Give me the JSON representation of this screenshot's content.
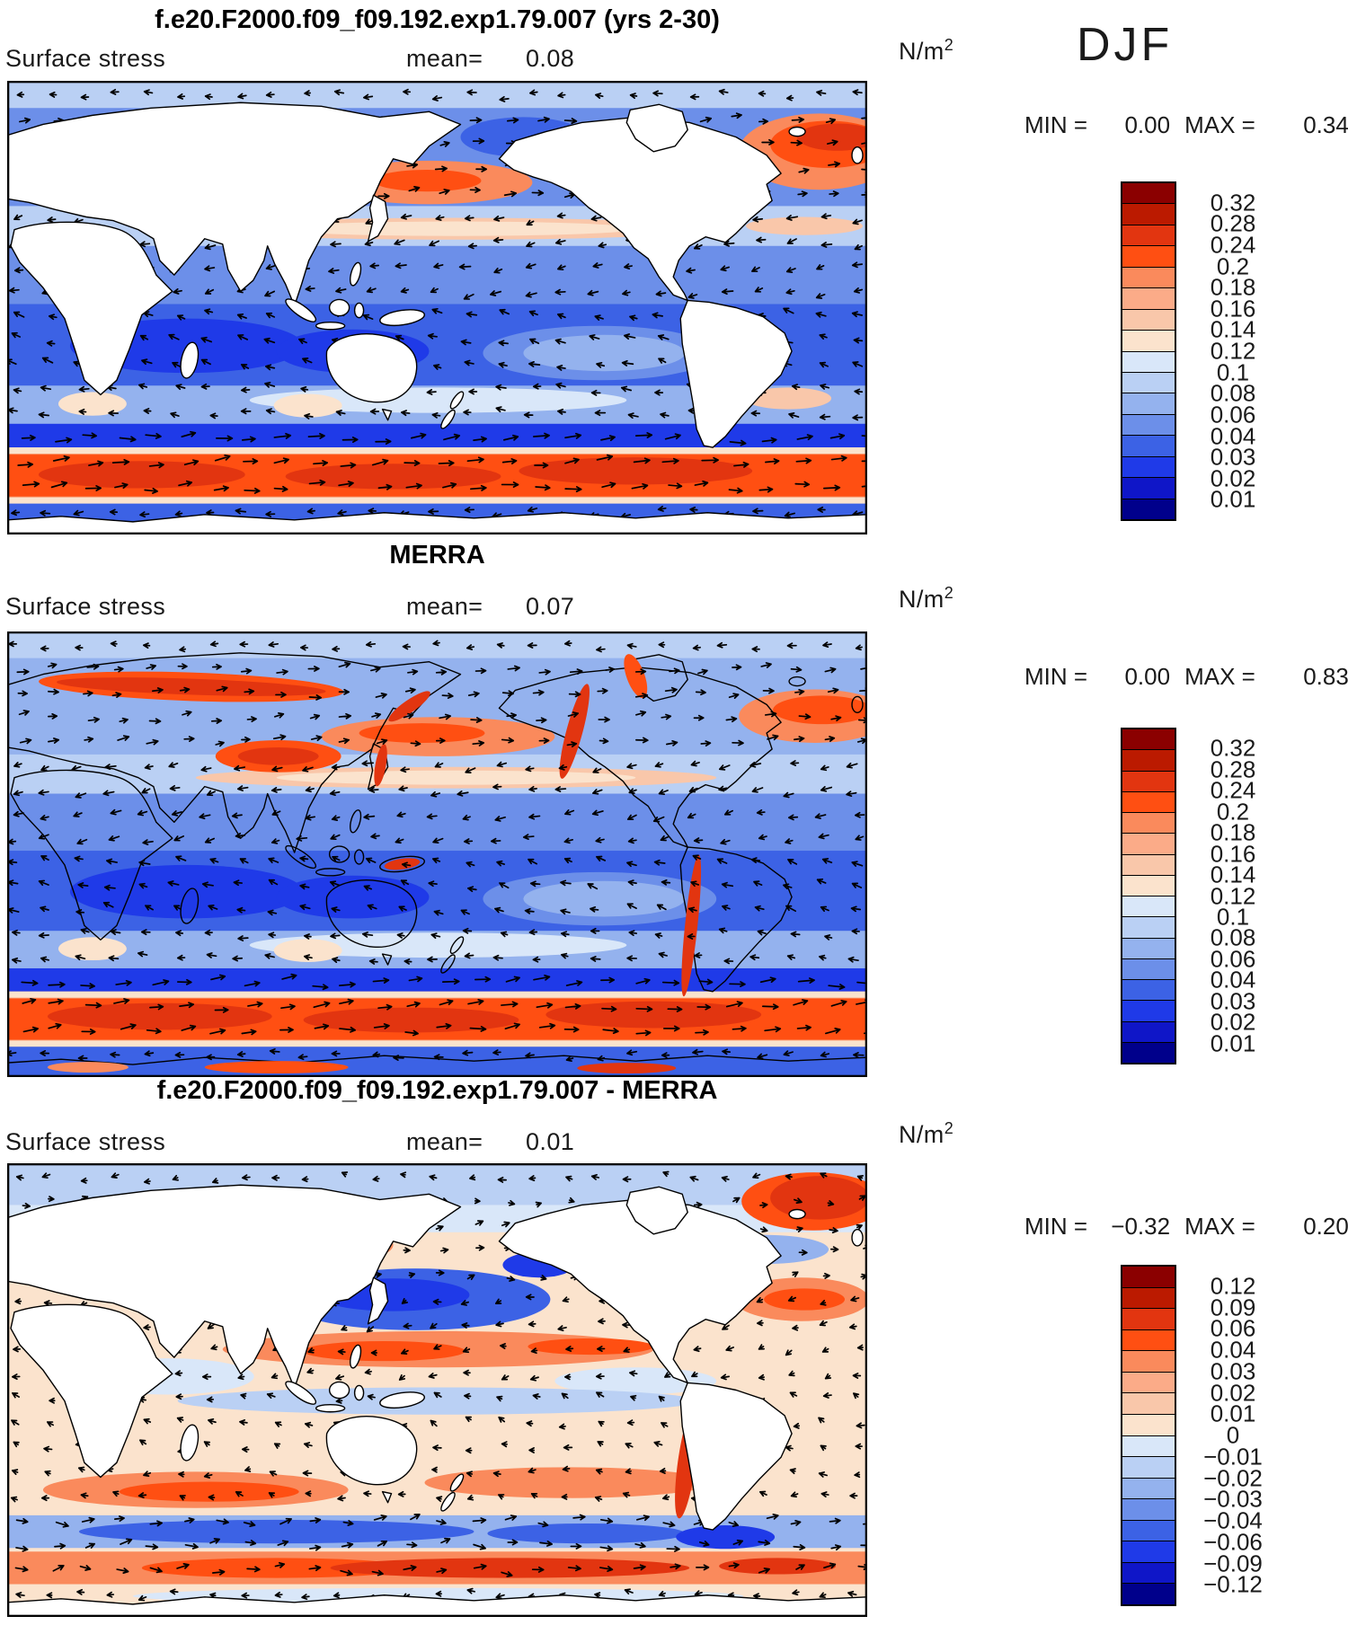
{
  "season": "DJF",
  "panels": [
    {
      "title": "f.e20.F2000.f09_f09.192.exp1.79.007 (yrs 2-30)",
      "field": "Surface stress",
      "mean_label": "mean=",
      "mean": "0.08",
      "units_base": "N/m",
      "units_exp": "2",
      "min_label": "MIN =",
      "min": "0.00",
      "max_label": "MAX =",
      "max": "0.34"
    },
    {
      "title": "MERRA",
      "field": "Surface stress",
      "mean_label": "mean=",
      "mean": "0.07",
      "units_base": "N/m",
      "units_exp": "2",
      "min_label": "MIN =",
      "min": "0.00",
      "max_label": "MAX =",
      "max": "0.83"
    },
    {
      "title": "f.e20.F2000.f09_f09.192.exp1.79.007 - MERRA",
      "field": "Surface stress",
      "mean_label": "mean=",
      "mean": "0.01",
      "units_base": "N/m",
      "units_exp": "2",
      "min_label": "MIN =",
      "min": "−0.32",
      "max_label": "MAX =",
      "max": "0.20"
    }
  ],
  "colorbar_values_main": [
    "0.32",
    "0.28",
    "0.24",
    "0.2",
    "0.18",
    "0.16",
    "0.14",
    "0.12",
    "0.1",
    "0.08",
    "0.06",
    "0.04",
    "0.03",
    "0.02",
    "0.01"
  ],
  "colorbar_values_diff": [
    "0.12",
    "0.09",
    "0.06",
    "0.04",
    "0.03",
    "0.02",
    "0.01",
    "0",
    "−0.01",
    "−0.02",
    "−0.03",
    "−0.04",
    "−0.06",
    "−0.09",
    "−0.12"
  ],
  "band_colors": [
    "#8b0000",
    "#bb1a00",
    "#e23510",
    "#ff4f12",
    "#fa8a5c",
    "#fbab88",
    "#f9c7aa",
    "#fbe3cd",
    "#d9e7f9",
    "#bad0f4",
    "#94b2ee",
    "#6c8fe9",
    "#3c62e5",
    "#1f3ae8",
    "#0f16c8",
    "#00008b"
  ],
  "chart_data": [
    {
      "type": "heatmap",
      "title": "f.e20.F2000.f09_f09.192.exp1.79.007 (yrs 2-30)",
      "variable": "Surface stress",
      "units": "N/m^2",
      "season": "DJF",
      "mean": 0.08,
      "min": 0.0,
      "max": 0.34,
      "contour_levels": [
        0.01,
        0.02,
        0.03,
        0.04,
        0.06,
        0.08,
        0.1,
        0.12,
        0.14,
        0.16,
        0.18,
        0.2,
        0.24,
        0.28,
        0.32
      ],
      "palette_low_to_high": [
        "#00008b",
        "#0f16c8",
        "#1f3ae8",
        "#3c62e5",
        "#6c8fe9",
        "#94b2ee",
        "#bad0f4",
        "#d9e7f9",
        "#fbe3cd",
        "#f9c7aa",
        "#fbab88",
        "#fa8a5c",
        "#ff4f12",
        "#e23510",
        "#bb1a00",
        "#8b0000"
      ],
      "overlay": "surface stress vector arrows",
      "extent": "global latitude-longitude map, land masked white"
    },
    {
      "type": "heatmap",
      "title": "MERRA",
      "variable": "Surface stress",
      "units": "N/m^2",
      "season": "DJF",
      "mean": 0.07,
      "min": 0.0,
      "max": 0.83,
      "contour_levels": [
        0.01,
        0.02,
        0.03,
        0.04,
        0.06,
        0.08,
        0.1,
        0.12,
        0.14,
        0.16,
        0.18,
        0.2,
        0.24,
        0.28,
        0.32
      ],
      "palette_low_to_high": [
        "#00008b",
        "#0f16c8",
        "#1f3ae8",
        "#3c62e5",
        "#6c8fe9",
        "#94b2ee",
        "#bad0f4",
        "#d9e7f9",
        "#fbe3cd",
        "#f9c7aa",
        "#fbab88",
        "#fa8a5c",
        "#ff4f12",
        "#e23510",
        "#bb1a00",
        "#8b0000"
      ],
      "overlay": "surface stress vector arrows",
      "extent": "global latitude-longitude map, field shown over land with red orographic maxima"
    },
    {
      "type": "heatmap",
      "title": "f.e20.F2000.f09_f09.192.exp1.79.007 - MERRA",
      "variable": "Surface stress difference",
      "units": "N/m^2",
      "season": "DJF",
      "mean": 0.01,
      "min": -0.32,
      "max": 0.2,
      "contour_levels": [
        -0.12,
        -0.09,
        -0.06,
        -0.04,
        -0.03,
        -0.02,
        -0.01,
        0,
        0.01,
        0.02,
        0.03,
        0.04,
        0.06,
        0.09,
        0.12
      ],
      "palette_low_to_high": [
        "#00008b",
        "#0f16c8",
        "#1f3ae8",
        "#3c62e5",
        "#6c8fe9",
        "#94b2ee",
        "#bad0f4",
        "#d9e7f9",
        "#fbe3cd",
        "#f9c7aa",
        "#fbab88",
        "#fa8a5c",
        "#ff4f12",
        "#e23510",
        "#bb1a00",
        "#8b0000"
      ],
      "overlay": "difference vector arrows",
      "extent": "global latitude-longitude map, land masked white"
    }
  ]
}
